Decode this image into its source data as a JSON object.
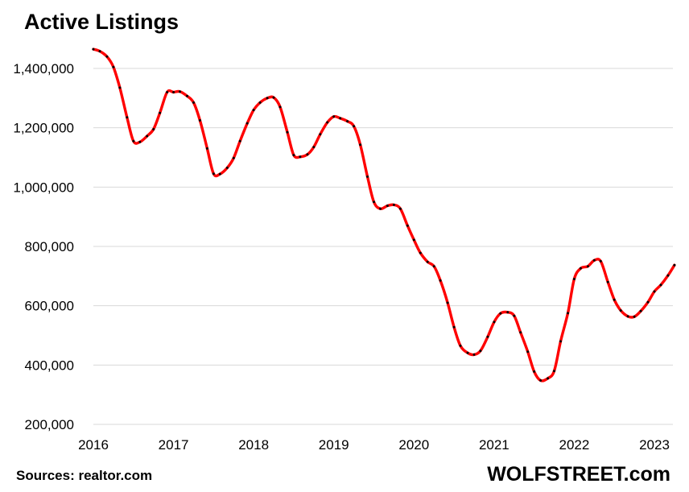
{
  "chart_data": {
    "type": "line",
    "title": "Active Listings",
    "xlabel": "",
    "ylabel": "",
    "y_tick_labels": [
      "200,000",
      "400,000",
      "600,000",
      "800,000",
      "1,000,000",
      "1,200,000",
      "1,400,000"
    ],
    "y_ticks": [
      200000,
      400000,
      600000,
      800000,
      1000000,
      1200000,
      1400000
    ],
    "x_tick_labels": [
      "2016",
      "2017",
      "2018",
      "2019",
      "2020",
      "2021",
      "2022",
      "2023"
    ],
    "x_ticks": [
      2016,
      2017,
      2018,
      2019,
      2020,
      2021,
      2022,
      2023
    ],
    "ylim": [
      200000,
      1500000
    ],
    "xlim": [
      2016,
      2023.27
    ],
    "grid": true,
    "series": [
      {
        "color": "#ff0000",
        "marker_color": "#000000",
        "points": [
          [
            2016.0,
            1465000
          ],
          [
            2016.08,
            1458000
          ],
          [
            2016.17,
            1440000
          ],
          [
            2016.25,
            1405000
          ],
          [
            2016.33,
            1335000
          ],
          [
            2016.42,
            1235000
          ],
          [
            2016.5,
            1155000
          ],
          [
            2016.58,
            1152000
          ],
          [
            2016.67,
            1172000
          ],
          [
            2016.75,
            1195000
          ],
          [
            2016.83,
            1250000
          ],
          [
            2016.92,
            1320000
          ],
          [
            2017.0,
            1320000
          ],
          [
            2017.08,
            1322000
          ],
          [
            2017.17,
            1307000
          ],
          [
            2017.25,
            1285000
          ],
          [
            2017.33,
            1225000
          ],
          [
            2017.42,
            1130000
          ],
          [
            2017.5,
            1045000
          ],
          [
            2017.58,
            1044000
          ],
          [
            2017.67,
            1065000
          ],
          [
            2017.75,
            1098000
          ],
          [
            2017.83,
            1155000
          ],
          [
            2017.92,
            1215000
          ],
          [
            2018.0,
            1260000
          ],
          [
            2018.08,
            1285000
          ],
          [
            2018.17,
            1300000
          ],
          [
            2018.25,
            1302000
          ],
          [
            2018.33,
            1270000
          ],
          [
            2018.42,
            1185000
          ],
          [
            2018.5,
            1108000
          ],
          [
            2018.58,
            1102000
          ],
          [
            2018.67,
            1110000
          ],
          [
            2018.75,
            1135000
          ],
          [
            2018.83,
            1178000
          ],
          [
            2018.92,
            1218000
          ],
          [
            2019.0,
            1238000
          ],
          [
            2019.08,
            1232000
          ],
          [
            2019.17,
            1222000
          ],
          [
            2019.25,
            1205000
          ],
          [
            2019.33,
            1143000
          ],
          [
            2019.42,
            1035000
          ],
          [
            2019.5,
            950000
          ],
          [
            2019.58,
            927000
          ],
          [
            2019.67,
            937000
          ],
          [
            2019.75,
            940000
          ],
          [
            2019.83,
            927000
          ],
          [
            2019.92,
            870000
          ],
          [
            2020.0,
            822000
          ],
          [
            2020.08,
            778000
          ],
          [
            2020.17,
            748000
          ],
          [
            2020.25,
            733000
          ],
          [
            2020.33,
            685000
          ],
          [
            2020.42,
            610000
          ],
          [
            2020.5,
            528000
          ],
          [
            2020.58,
            465000
          ],
          [
            2020.67,
            441000
          ],
          [
            2020.75,
            435000
          ],
          [
            2020.83,
            448000
          ],
          [
            2020.92,
            495000
          ],
          [
            2021.0,
            545000
          ],
          [
            2021.08,
            574000
          ],
          [
            2021.17,
            578000
          ],
          [
            2021.25,
            566000
          ],
          [
            2021.33,
            510000
          ],
          [
            2021.42,
            445000
          ],
          [
            2021.5,
            378000
          ],
          [
            2021.58,
            348000
          ],
          [
            2021.67,
            355000
          ],
          [
            2021.75,
            380000
          ],
          [
            2021.83,
            480000
          ],
          [
            2021.92,
            575000
          ],
          [
            2022.0,
            690000
          ],
          [
            2022.08,
            726000
          ],
          [
            2022.17,
            733000
          ],
          [
            2022.25,
            753000
          ],
          [
            2022.33,
            750000
          ],
          [
            2022.42,
            680000
          ],
          [
            2022.5,
            620000
          ],
          [
            2022.58,
            584000
          ],
          [
            2022.67,
            564000
          ],
          [
            2022.75,
            563000
          ],
          [
            2022.83,
            582000
          ],
          [
            2022.92,
            612000
          ],
          [
            2023.0,
            648000
          ],
          [
            2023.08,
            670000
          ],
          [
            2023.17,
            702000
          ],
          [
            2023.25,
            737000
          ]
        ]
      }
    ]
  },
  "footer": {
    "source": "Sources: realtor.com",
    "brand": "WOLFSTREET.com"
  }
}
